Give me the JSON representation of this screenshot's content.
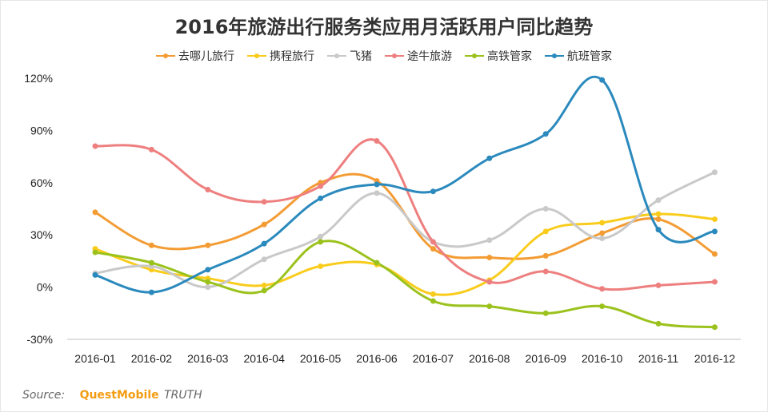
{
  "chart_data": {
    "type": "line",
    "title": "2016年旅游出行服务类应用月活跃用户同比趋势",
    "xlabel": "",
    "ylabel": "",
    "categories": [
      "2016-01",
      "2016-02",
      "2016-03",
      "2016-04",
      "2016-05",
      "2016-06",
      "2016-07",
      "2016-08",
      "2016-09",
      "2016-10",
      "2016-11",
      "2016-12"
    ],
    "ylim": [
      -30,
      120
    ],
    "yticks": [
      -30,
      0,
      30,
      60,
      90,
      120
    ],
    "ytick_labels": [
      "-30%",
      "0%",
      "30%",
      "60%",
      "90%",
      "120%"
    ],
    "grid": false,
    "legend_position": "top",
    "series": [
      {
        "name": "去哪儿旅行",
        "color": "#f39c34",
        "values": [
          43,
          24,
          24,
          36,
          60,
          61,
          22,
          17,
          18,
          31,
          39,
          19
        ]
      },
      {
        "name": "携程旅行",
        "color": "#f9cc1c",
        "values": [
          22,
          10,
          5,
          1,
          12,
          13,
          -4,
          4,
          32,
          37,
          42,
          39
        ]
      },
      {
        "name": "飞猪",
        "color": "#c9c9c9",
        "values": [
          8,
          12,
          0,
          16,
          29,
          54,
          26,
          27,
          45,
          28,
          50,
          66
        ]
      },
      {
        "name": "途牛旅游",
        "color": "#ee7f7f",
        "values": [
          81,
          79,
          56,
          49,
          58,
          84,
          26,
          3,
          9,
          -1,
          1,
          3
        ]
      },
      {
        "name": "高铁管家",
        "color": "#9bc21c",
        "values": [
          20,
          14,
          3,
          -2,
          26,
          14,
          -8,
          -11,
          -15,
          -11,
          -21,
          -23
        ]
      },
      {
        "name": "航班管家",
        "color": "#2a89bd",
        "values": [
          7,
          -3,
          10,
          25,
          51,
          59,
          55,
          74,
          88,
          119,
          33,
          32
        ]
      }
    ]
  },
  "source": {
    "label": "Source:",
    "brand": "QuestMobile",
    "suffix": "TRUTH"
  }
}
